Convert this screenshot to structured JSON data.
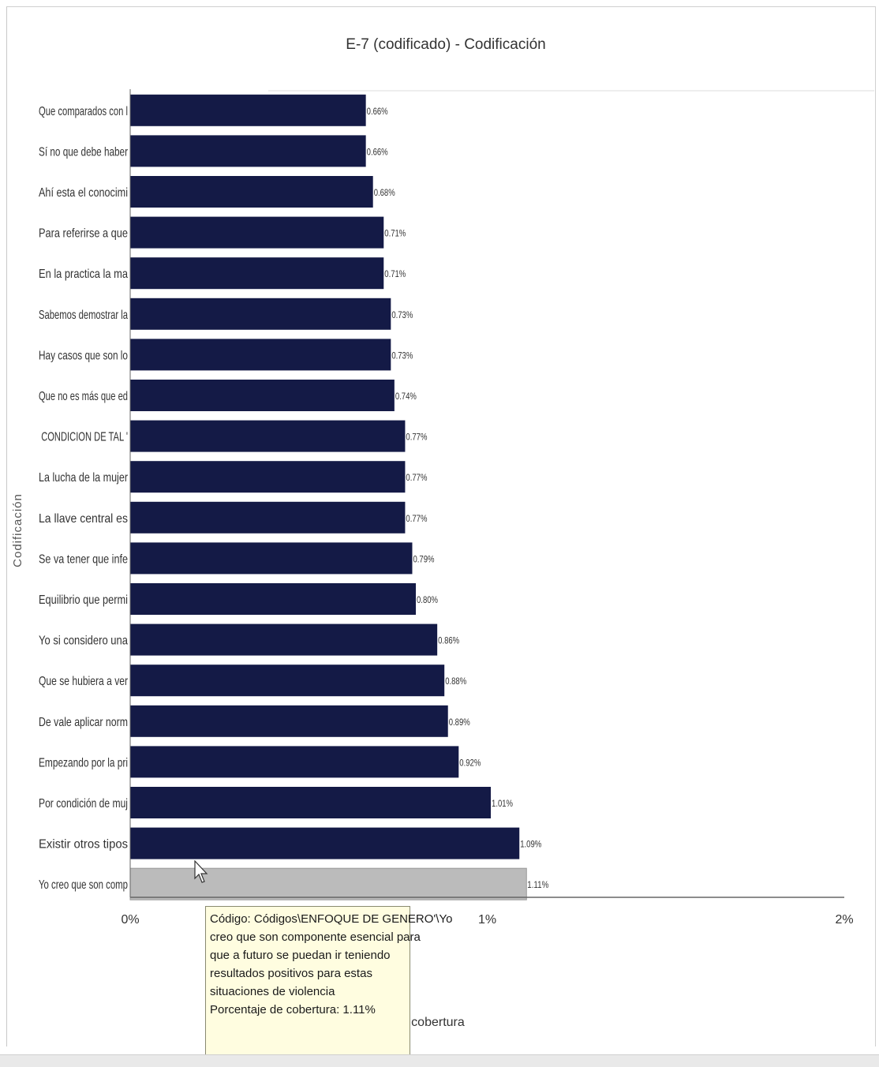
{
  "window": {
    "accent": "#141a46",
    "highlight": "#bbbbbb"
  },
  "chart_data": {
    "type": "bar",
    "orientation": "horizontal",
    "title": "E-7 (codificado) - Codificación",
    "ylabel": "Codificación",
    "xlabel": "Porcentaje de cobertura",
    "xlim": [
      0,
      2
    ],
    "x_ticks": [
      "0%",
      "1%",
      "2%"
    ],
    "categories": [
      "Que comparados con l",
      "Sí no que debe haber",
      "Ahí esta el conocimi",
      "Para referirse a que",
      "En la practica la ma",
      "Sabemos demostrar la",
      "Hay casos que son lo",
      "Que no es más que ed",
      "CONDICION DE TAL '",
      "La lucha de la mujer",
      "La llave central es",
      "Se va tener que infe",
      "Equilibrio que permi",
      "Yo si considero una",
      "Que se hubiera a ver",
      "De vale aplicar norm",
      "Empezando por la pri",
      "Por condición de muj",
      "Existir otros tipos",
      "Yo creo que son comp"
    ],
    "values": [
      0.66,
      0.66,
      0.68,
      0.71,
      0.71,
      0.73,
      0.73,
      0.74,
      0.77,
      0.77,
      0.77,
      0.79,
      0.8,
      0.86,
      0.88,
      0.89,
      0.92,
      1.01,
      1.09,
      1.11
    ],
    "value_labels": [
      "0.66%",
      "0.66%",
      "0.68%",
      "0.71%",
      "0.71%",
      "0.73%",
      "0.73%",
      "0.74%",
      "0.77%",
      "0.77%",
      "0.77%",
      "0.79%",
      "0.80%",
      "0.86%",
      "0.88%",
      "0.89%",
      "0.92%",
      "1.01%",
      "1.09%",
      "1.11%"
    ],
    "highlighted_index": 19,
    "grid": false
  },
  "tooltip": {
    "lines": [
      "Código: Códigos\\ENFOQUE DE GENERO'\\Yo",
      "creo que son componente esencial para",
      "que a futuro se puedan ir teniendo",
      "resultados positivos para estas",
      "situaciones de violencia",
      "Porcentaje de cobertura: 1.11%"
    ]
  }
}
